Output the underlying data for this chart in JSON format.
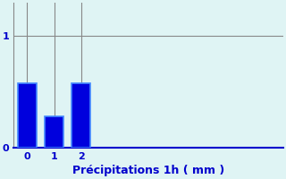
{
  "categories": [
    0,
    1,
    2
  ],
  "values": [
    0.58,
    0.28,
    0.58
  ],
  "bar_color": "#0000dd",
  "bar_edge_color": "#4488ff",
  "background_color": "#dff4f4",
  "grid_color": "#888888",
  "xlabel": "Précipitations 1h ( mm )",
  "xlabel_color": "#0000cc",
  "xlabel_fontsize": 9,
  "tick_color": "#0000cc",
  "tick_fontsize": 8,
  "ytick_labels": [
    "0",
    "1"
  ],
  "ytick_values": [
    0,
    1
  ],
  "ylim": [
    0,
    1.3
  ],
  "xlim": [
    -0.5,
    9.5
  ],
  "bar_width": 0.7,
  "bottom_spine_color": "#0000cc",
  "left_spine_color": "#888888"
}
